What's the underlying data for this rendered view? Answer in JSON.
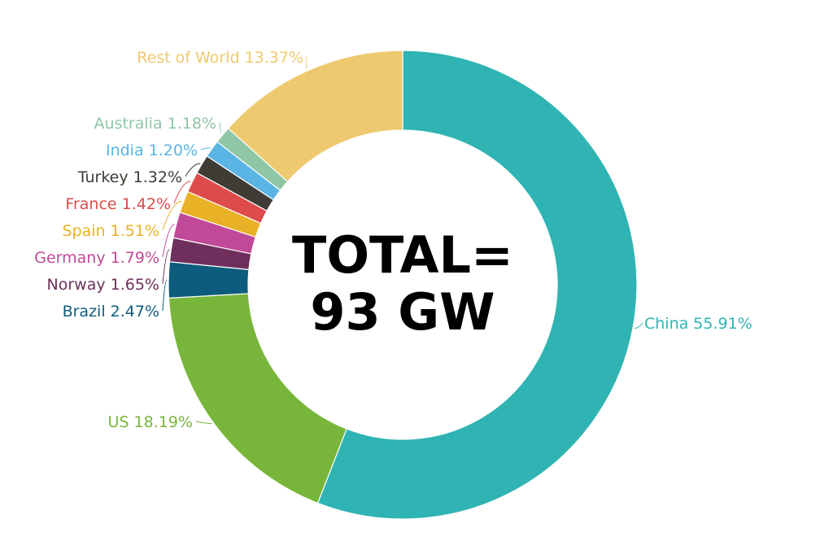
{
  "chart_data": {
    "type": "pie",
    "variant": "donut",
    "center_text": [
      "TOTAL=",
      "93 GW"
    ],
    "label_format": "{name} {pct}",
    "slices": [
      {
        "name": "China",
        "value": 55.91,
        "label": "China 55.91%",
        "color": "#2fb4b3",
        "label_color": "#2fb4b3"
      },
      {
        "name": "US",
        "value": 18.19,
        "label": "US 18.19%",
        "color": "#77b63a",
        "label_color": "#77b63a"
      },
      {
        "name": "Brazil",
        "value": 2.47,
        "label": "Brazil 2.47%",
        "color": "#0d5c7d",
        "label_color": "#0d5c7d"
      },
      {
        "name": "Norway",
        "value": 1.65,
        "label": "Norway 1.65%",
        "color": "#6e2f5c",
        "label_color": "#6e2f5c"
      },
      {
        "name": "Germany",
        "value": 1.79,
        "label": "Germany 1.79%",
        "color": "#c14a98",
        "label_color": "#c14a98"
      },
      {
        "name": "Spain",
        "value": 1.51,
        "label": "Spain 1.51%",
        "color": "#e9b125",
        "label_color": "#e9b125"
      },
      {
        "name": "France",
        "value": 1.42,
        "label": "France 1.42%",
        "color": "#dd4b4b",
        "label_color": "#dd4b4b"
      },
      {
        "name": "Turkey",
        "value": 1.32,
        "label": "Turkey 1.32%",
        "color": "#3f3b35",
        "label_color": "#3f3b35"
      },
      {
        "name": "India",
        "value": 1.2,
        "label": "India 1.20%",
        "color": "#5ab5e5",
        "label_color": "#5ab5e5"
      },
      {
        "name": "Australia",
        "value": 1.18,
        "label": "Australia 1.18%",
        "color": "#8fc6a5",
        "label_color": "#8fc6a5"
      },
      {
        "name": "Rest of World",
        "value": 13.37,
        "label": "Rest of World 13.37%",
        "color": "#eec96f",
        "label_color": "#eec96f"
      }
    ]
  }
}
